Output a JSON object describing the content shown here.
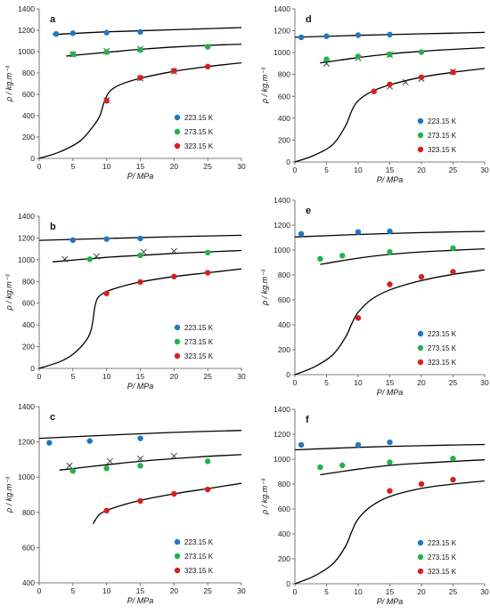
{
  "colors": {
    "s223": "#1f77c4",
    "s273": "#22b14c",
    "s323": "#d62020",
    "model": "#000000",
    "cross": "#333333"
  },
  "legend_labels": [
    "223.15 K",
    "273.15 K",
    "323.15 K"
  ],
  "chart_data": [
    {
      "type": "scatter",
      "panel": "a",
      "xlabel": "P/ MPa",
      "ylabel": "ρ / kg.m⁻³",
      "xlim": [
        0,
        30
      ],
      "ylim": [
        0,
        1400
      ],
      "xticks": [
        0,
        5,
        10,
        15,
        20,
        25,
        30
      ],
      "yticks": [
        0,
        200,
        400,
        600,
        800,
        1000,
        1200,
        1400
      ],
      "series": [
        {
          "name": "223.15 K",
          "points": [
            [
              2.5,
              1165
            ],
            [
              5,
              1172
            ],
            [
              10,
              1178
            ],
            [
              15,
              1185
            ]
          ]
        },
        {
          "name": "273.15 K",
          "points": [
            [
              5,
              975
            ],
            [
              10,
              995
            ],
            [
              15,
              1015
            ],
            [
              25,
              1045
            ]
          ]
        },
        {
          "name": "323.15 K",
          "points": [
            [
              10,
              540
            ],
            [
              15,
              755
            ],
            [
              20,
              820
            ],
            [
              25,
              860
            ]
          ]
        }
      ],
      "crosses": [
        [
          5,
          975
        ],
        [
          10,
          1005
        ],
        [
          15,
          1025
        ],
        [
          10,
          545
        ],
        [
          15,
          750
        ],
        [
          20,
          815
        ]
      ],
      "model_curves": [
        [
          [
            2,
            1160
          ],
          [
            10,
            1185
          ],
          [
            20,
            1205
          ],
          [
            30,
            1225
          ]
        ],
        [
          [
            4,
            958
          ],
          [
            10,
            993
          ],
          [
            15,
            1022
          ],
          [
            20,
            1043
          ],
          [
            25,
            1058
          ],
          [
            30,
            1070
          ]
        ],
        [
          [
            0,
            0
          ],
          [
            3,
            60
          ],
          [
            6,
            160
          ],
          [
            8,
            300
          ],
          [
            9,
            400
          ],
          [
            9.7,
            540
          ],
          [
            10.5,
            630
          ],
          [
            12,
            690
          ],
          [
            15,
            750
          ],
          [
            20,
            815
          ],
          [
            25,
            860
          ],
          [
            30,
            895
          ]
        ]
      ]
    },
    {
      "type": "scatter",
      "panel": "b",
      "xlabel": "P/ MPa",
      "ylabel": "ρ / kg.m⁻³",
      "xlim": [
        0,
        30
      ],
      "ylim": [
        0,
        1400
      ],
      "xticks": [
        0,
        5,
        10,
        15,
        20,
        25,
        30
      ],
      "yticks": [
        0,
        200,
        400,
        600,
        800,
        1000,
        1200,
        1400
      ],
      "series": [
        {
          "name": "223.15 K",
          "points": [
            [
              5,
              1180
            ],
            [
              10,
              1190
            ],
            [
              15,
              1195
            ]
          ]
        },
        {
          "name": "273.15 K",
          "points": [
            [
              7.5,
              1005
            ],
            [
              15,
              1040
            ],
            [
              25,
              1065
            ]
          ]
        },
        {
          "name": "323.15 K",
          "points": [
            [
              10,
              690
            ],
            [
              15,
              795
            ],
            [
              20,
              845
            ],
            [
              25,
              880
            ]
          ]
        }
      ],
      "crosses": [
        [
          3.8,
          1005
        ],
        [
          8.5,
          1030
        ],
        [
          15.5,
          1070
        ],
        [
          20,
          1080
        ]
      ],
      "model_curves": [
        [
          [
            0,
            1178
          ],
          [
            10,
            1195
          ],
          [
            20,
            1212
          ],
          [
            30,
            1225
          ]
        ],
        [
          [
            2,
            980
          ],
          [
            10,
            1022
          ],
          [
            15,
            1040
          ],
          [
            20,
            1058
          ],
          [
            25,
            1072
          ],
          [
            30,
            1085
          ]
        ],
        [
          [
            0,
            0
          ],
          [
            3,
            60
          ],
          [
            5,
            130
          ],
          [
            7,
            260
          ],
          [
            7.8,
            380
          ],
          [
            8.3,
            580
          ],
          [
            9,
            670
          ],
          [
            11,
            730
          ],
          [
            15,
            795
          ],
          [
            20,
            845
          ],
          [
            25,
            880
          ],
          [
            30,
            915
          ]
        ]
      ]
    },
    {
      "type": "scatter",
      "panel": "c",
      "xlabel": "P/ MPa",
      "ylabel": "ρ / kg.m⁻³",
      "xlim": [
        0,
        30
      ],
      "ylim": [
        400,
        1400
      ],
      "xticks": [
        0,
        5,
        10,
        15,
        20,
        25,
        30
      ],
      "yticks": [
        400,
        600,
        800,
        1000,
        1200,
        1400
      ],
      "series": [
        {
          "name": "223.15 K",
          "points": [
            [
              1.5,
              1195
            ],
            [
              7.5,
              1205
            ],
            [
              15,
              1220
            ]
          ]
        },
        {
          "name": "273.15 K",
          "points": [
            [
              5,
              1035
            ],
            [
              10,
              1050
            ],
            [
              15,
              1065
            ],
            [
              25,
              1090
            ]
          ]
        },
        {
          "name": "323.15 K",
          "points": [
            [
              10,
              810
            ],
            [
              15,
              865
            ],
            [
              20,
              905
            ],
            [
              25,
              930
            ]
          ]
        }
      ],
      "crosses": [
        [
          4.5,
          1065
        ],
        [
          10.5,
          1090
        ],
        [
          15,
          1105
        ],
        [
          20,
          1120
        ]
      ],
      "model_curves": [
        [
          [
            0,
            1220
          ],
          [
            10,
            1238
          ],
          [
            20,
            1254
          ],
          [
            30,
            1265
          ]
        ],
        [
          [
            3,
            1040
          ],
          [
            10,
            1070
          ],
          [
            15,
            1090
          ],
          [
            20,
            1105
          ],
          [
            25,
            1118
          ],
          [
            30,
            1128
          ]
        ],
        [
          [
            8,
            735
          ],
          [
            9,
            790
          ],
          [
            11,
            825
          ],
          [
            15,
            868
          ],
          [
            20,
            905
          ],
          [
            25,
            935
          ],
          [
            30,
            965
          ]
        ]
      ]
    },
    {
      "type": "scatter",
      "panel": "d",
      "xlabel": "P/ MPa",
      "ylabel": "ρ / kg.m⁻³",
      "xlim": [
        0,
        30
      ],
      "ylim": [
        0,
        1400
      ],
      "xticks": [
        0,
        5,
        10,
        15,
        20,
        25,
        30
      ],
      "yticks": [
        0,
        200,
        400,
        600,
        800,
        1000,
        1200,
        1400
      ],
      "series": [
        {
          "name": "223.15 K",
          "points": [
            [
              1,
              1140
            ],
            [
              5,
              1150
            ],
            [
              10,
              1160
            ],
            [
              15,
              1165
            ]
          ]
        },
        {
          "name": "273.15 K",
          "points": [
            [
              5,
              940
            ],
            [
              10,
              965
            ],
            [
              15,
              985
            ],
            [
              20,
              1005
            ]
          ]
        },
        {
          "name": "323.15 K",
          "points": [
            [
              12.5,
              645
            ],
            [
              15,
              710
            ],
            [
              20,
              775
            ],
            [
              25,
              820
            ]
          ]
        }
      ],
      "crosses": [
        [
          5,
          900
        ],
        [
          10,
          950
        ],
        [
          15,
          980
        ],
        [
          15,
          690
        ],
        [
          17.5,
          730
        ],
        [
          20,
          760
        ],
        [
          25,
          825
        ]
      ],
      "model_curves": [
        [
          [
            0,
            1140
          ],
          [
            10,
            1158
          ],
          [
            20,
            1172
          ],
          [
            30,
            1185
          ]
        ],
        [
          [
            4,
            905
          ],
          [
            10,
            955
          ],
          [
            15,
            988
          ],
          [
            20,
            1012
          ],
          [
            25,
            1030
          ],
          [
            30,
            1045
          ]
        ],
        [
          [
            0,
            0
          ],
          [
            3,
            60
          ],
          [
            6,
            160
          ],
          [
            8,
            330
          ],
          [
            9,
            470
          ],
          [
            10,
            560
          ],
          [
            12,
            640
          ],
          [
            15,
            705
          ],
          [
            20,
            775
          ],
          [
            25,
            820
          ],
          [
            30,
            855
          ]
        ]
      ]
    },
    {
      "type": "scatter",
      "panel": "e",
      "xlabel": "P/ MPa",
      "ylabel": "ρ / kg.m⁻³",
      "xlim": [
        0,
        30
      ],
      "ylim": [
        0,
        1400
      ],
      "xticks": [
        0,
        5,
        10,
        15,
        20,
        25,
        30
      ],
      "yticks": [
        0,
        200,
        400,
        600,
        800,
        1000,
        1200,
        1400
      ],
      "series": [
        {
          "name": "223.15 K",
          "points": [
            [
              1,
              1130
            ],
            [
              10,
              1145
            ],
            [
              15,
              1150
            ]
          ]
        },
        {
          "name": "273.15 K",
          "points": [
            [
              4,
              930
            ],
            [
              7.5,
              955
            ],
            [
              15,
              985
            ],
            [
              25,
              1015
            ]
          ]
        },
        {
          "name": "323.15 K",
          "points": [
            [
              10,
              455
            ],
            [
              15,
              725
            ],
            [
              20,
              785
            ],
            [
              25,
              825
            ]
          ]
        }
      ],
      "crosses": [],
      "model_curves": [
        [
          [
            0,
            1105
          ],
          [
            10,
            1125
          ],
          [
            20,
            1140
          ],
          [
            30,
            1150
          ]
        ],
        [
          [
            4,
            885
          ],
          [
            10,
            935
          ],
          [
            15,
            965
          ],
          [
            20,
            985
          ],
          [
            25,
            998
          ],
          [
            30,
            1010
          ]
        ],
        [
          [
            0,
            0
          ],
          [
            3,
            60
          ],
          [
            6,
            160
          ],
          [
            8,
            300
          ],
          [
            9,
            410
          ],
          [
            10,
            500
          ],
          [
            12,
            600
          ],
          [
            15,
            680
          ],
          [
            20,
            755
          ],
          [
            25,
            805
          ],
          [
            30,
            840
          ]
        ]
      ]
    },
    {
      "type": "scatter",
      "panel": "f",
      "xlabel": "P/ MPa",
      "ylabel": "ρ / kg.m⁻³",
      "xlim": [
        0,
        30
      ],
      "ylim": [
        0,
        1400
      ],
      "xticks": [
        0,
        5,
        10,
        15,
        20,
        25,
        30
      ],
      "yticks": [
        0,
        200,
        400,
        600,
        800,
        1000,
        1200,
        1400
      ],
      "series": [
        {
          "name": "223.15 K",
          "points": [
            [
              1,
              1115
            ],
            [
              10,
              1115
            ],
            [
              15,
              1135
            ]
          ]
        },
        {
          "name": "273.15 K",
          "points": [
            [
              4,
              935
            ],
            [
              7.5,
              950
            ],
            [
              15,
              975
            ],
            [
              25,
              1005
            ]
          ]
        },
        {
          "name": "323.15 K",
          "points": [
            [
              15,
              745
            ],
            [
              20,
              800
            ],
            [
              25,
              835
            ]
          ]
        }
      ],
      "crosses": [],
      "model_curves": [
        [
          [
            0,
            1075
          ],
          [
            10,
            1095
          ],
          [
            20,
            1108
          ],
          [
            30,
            1118
          ]
        ],
        [
          [
            4,
            875
          ],
          [
            10,
            920
          ],
          [
            15,
            950
          ],
          [
            20,
            968
          ],
          [
            25,
            982
          ],
          [
            30,
            995
          ]
        ],
        [
          [
            0,
            0
          ],
          [
            3,
            60
          ],
          [
            6,
            160
          ],
          [
            8,
            300
          ],
          [
            9,
            420
          ],
          [
            10,
            520
          ],
          [
            12,
            620
          ],
          [
            15,
            700
          ],
          [
            20,
            765
          ],
          [
            25,
            800
          ],
          [
            30,
            825
          ]
        ]
      ]
    }
  ]
}
